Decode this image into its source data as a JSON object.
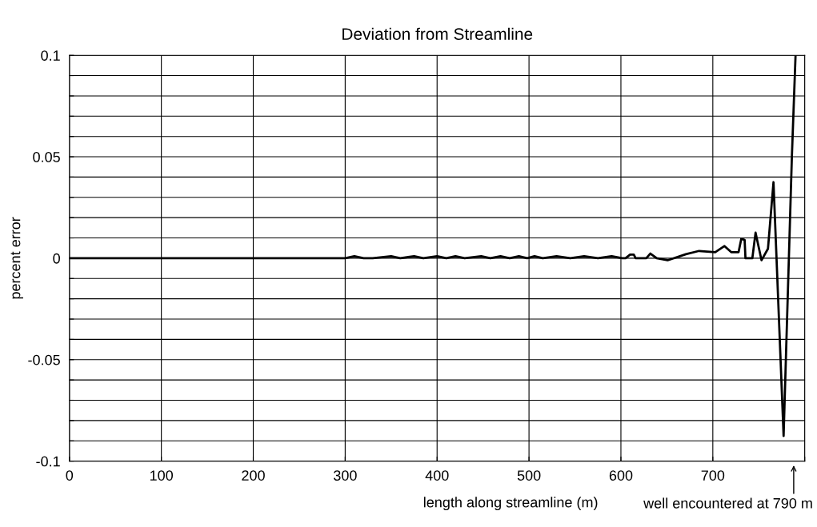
{
  "chart_data": {
    "type": "line",
    "title": "Deviation from Streamline",
    "xlabel": "length along streamline (m)",
    "ylabel": "percent error",
    "x": [
      0,
      300,
      310,
      320,
      330,
      350,
      360,
      375,
      385,
      400,
      410,
      420,
      430,
      448,
      458,
      469,
      479,
      489,
      498,
      506,
      515,
      530,
      545,
      560,
      575,
      590,
      601.5,
      605,
      610,
      614,
      616,
      627.6,
      632,
      639,
      650.8,
      670.7,
      685,
      702.6,
      712.7,
      720,
      728,
      731,
      734.6,
      735.5,
      743,
      746.5,
      753,
      760,
      766,
      777,
      786,
      790
    ],
    "series": [
      {
        "color": "#000000",
        "values": [
          0,
          0,
          0.001,
          0,
          0,
          0.001,
          0,
          0.001,
          0,
          0.001,
          0,
          0.001,
          0,
          0.001,
          0,
          0.001,
          0,
          0.001,
          0,
          0.001,
          0,
          0.001,
          0,
          0.001,
          0,
          0.001,
          0,
          0,
          0.0018,
          0.0018,
          0,
          0,
          0.0023,
          0,
          -0.001,
          0.002,
          0.0036,
          0.003,
          0.006,
          0.003,
          0.003,
          0.0096,
          0.009,
          0,
          0,
          0.0126,
          -0.001,
          0.0047,
          0.0375,
          -0.0876,
          0.05,
          0.1
        ]
      }
    ],
    "xlim": [
      0,
      800
    ],
    "xticks": [
      0,
      100,
      200,
      300,
      400,
      500,
      600,
      700,
      {
        "value": 800,
        "label": null
      }
    ],
    "ylim": [
      -0.1,
      0.1
    ],
    "yticks": [
      -0.1,
      {
        "value": -0.09,
        "label": null
      },
      {
        "value": -0.08,
        "label": null
      },
      {
        "value": -0.07,
        "label": null
      },
      {
        "value": -0.06,
        "label": null
      },
      -0.05,
      {
        "value": -0.04,
        "label": null
      },
      {
        "value": -0.03,
        "label": null
      },
      {
        "value": -0.02,
        "label": null
      },
      {
        "value": -0.01,
        "label": null
      },
      0,
      {
        "value": 0.01,
        "label": null
      },
      {
        "value": 0.02,
        "label": null
      },
      {
        "value": 0.03,
        "label": null
      },
      {
        "value": 0.04,
        "label": null
      },
      0.05,
      {
        "value": 0.06,
        "label": null
      },
      {
        "value": 0.07,
        "label": null
      },
      {
        "value": 0.08,
        "label": null
      },
      {
        "value": 0.09,
        "label": null
      },
      0.1
    ],
    "grid": true,
    "legend": false,
    "marker": "none",
    "line_style": "solid",
    "annotations": [
      "well encountered at 790 m"
    ]
  }
}
